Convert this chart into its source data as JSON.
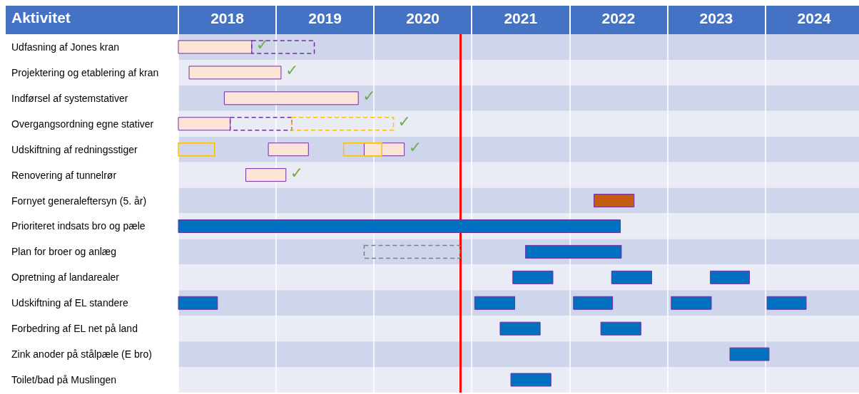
{
  "chart_data": {
    "type": "bar",
    "orientation": "horizontal",
    "ylabel": "Aktivitet",
    "categories": [
      "Udfasning af Jones kran",
      "Projektering og etablering af kran",
      "Indførsel af systemstativer",
      "Overgangsordning egne stativer",
      "Udskiftning af redningsstiger",
      "Renovering af tunnelrør",
      "Fornyet generaleftersyn (5. år)",
      "Prioriteret indsats bro og pæle",
      "Plan for broer og anlæg",
      "Opretning af landarealer",
      "Udskiftning af EL standere",
      "Forbedring af EL net på land",
      "Zink anoder på stålpæle (E bro)",
      "Toilet/bad på Muslingen"
    ],
    "series": [
      {
        "color": "#fbe5d6",
        "base": [
          2018.0,
          2018.11,
          2018.47,
          2018.0,
          2018.92,
          2018.69,
          null,
          null,
          null,
          null,
          null,
          null,
          null,
          null
        ],
        "values": [
          0.75,
          0.94,
          1.37,
          0.53,
          0.41,
          0.41,
          null,
          null,
          null,
          null,
          null,
          null,
          null,
          null
        ]
      },
      {
        "color": "#7030a0",
        "line_style": "dashed",
        "base": [
          2018.75,
          null,
          null,
          2018.53,
          null,
          null,
          null,
          null,
          null,
          null,
          null,
          null,
          null,
          null
        ],
        "values": [
          0.64,
          null,
          null,
          0.63,
          null,
          null,
          null,
          null,
          null,
          null,
          null,
          null,
          null,
          null
        ]
      },
      {
        "color": "#ffc000",
        "line_style": "dashed",
        "base": [
          null,
          null,
          null,
          2019.16,
          null,
          null,
          null,
          null,
          null,
          null,
          null,
          null,
          null,
          null
        ],
        "values": [
          null,
          null,
          null,
          1.04,
          null,
          null,
          null,
          null,
          null,
          null,
          null,
          null,
          null,
          null
        ]
      },
      {
        "color": "#ffc000",
        "line_style": "solid",
        "base": [
          null,
          null,
          null,
          null,
          2018.0,
          null,
          null,
          null,
          null,
          null,
          null,
          null,
          null,
          null
        ],
        "values": [
          null,
          null,
          null,
          null,
          0.37,
          null,
          null,
          null,
          null,
          null,
          null,
          null,
          null,
          null
        ]
      },
      {
        "color": "#fbe5d6",
        "base": [
          null,
          null,
          null,
          null,
          2019.9,
          null,
          null,
          null,
          null,
          null,
          null,
          null,
          null,
          null
        ],
        "values": [
          null,
          null,
          null,
          null,
          0.41,
          null,
          null,
          null,
          null,
          null,
          null,
          null,
          null,
          null
        ]
      },
      {
        "color": "#ffc000",
        "line_style": "solid",
        "base": [
          null,
          null,
          null,
          null,
          2019.69,
          null,
          null,
          null,
          null,
          null,
          null,
          null,
          null,
          null
        ],
        "values": [
          null,
          null,
          null,
          null,
          0.39,
          null,
          null,
          null,
          null,
          null,
          null,
          null,
          null,
          null
        ]
      },
      {
        "color": "#c55a11",
        "base": [
          null,
          null,
          null,
          null,
          null,
          null,
          2022.25,
          null,
          null,
          null,
          null,
          null,
          null,
          null
        ],
        "values": [
          null,
          null,
          null,
          null,
          null,
          null,
          0.41,
          null,
          null,
          null,
          null,
          null,
          null,
          null
        ]
      },
      {
        "color": "#808080",
        "line_style": "dashed",
        "base": [
          null,
          null,
          null,
          null,
          null,
          null,
          null,
          null,
          2019.9,
          null,
          null,
          null,
          null,
          null
        ],
        "values": [
          null,
          null,
          null,
          null,
          null,
          null,
          null,
          null,
          0.98,
          null,
          null,
          null,
          null,
          null
        ]
      },
      {
        "color": "#0070c0",
        "base": [
          null,
          null,
          null,
          null,
          null,
          null,
          null,
          2018.0,
          2021.55,
          2021.42,
          2018.0,
          2021.29,
          2023.64,
          2021.4
        ],
        "values": [
          null,
          null,
          null,
          null,
          null,
          null,
          null,
          4.52,
          0.98,
          0.41,
          0.4,
          0.41,
          0.4,
          0.41
        ]
      },
      {
        "color": "#0070c0",
        "base": [
          null,
          null,
          null,
          null,
          null,
          null,
          null,
          null,
          null,
          2022.43,
          2021.03,
          2022.32,
          null,
          null
        ],
        "values": [
          null,
          null,
          null,
          null,
          null,
          null,
          null,
          null,
          null,
          0.41,
          0.41,
          0.41,
          null,
          null
        ]
      },
      {
        "color": "#0070c0",
        "base": [
          null,
          null,
          null,
          null,
          null,
          null,
          null,
          null,
          null,
          2023.44,
          2022.04,
          null,
          null,
          null
        ],
        "values": [
          null,
          null,
          null,
          null,
          null,
          null,
          null,
          null,
          null,
          0.4,
          0.4,
          null,
          null,
          null
        ]
      },
      {
        "color": "#0070c0",
        "base": [
          null,
          null,
          null,
          null,
          null,
          null,
          null,
          null,
          null,
          null,
          2023.04,
          null,
          null,
          null
        ],
        "values": [
          null,
          null,
          null,
          null,
          null,
          null,
          null,
          null,
          null,
          null,
          0.41,
          null,
          null,
          null
        ]
      },
      {
        "color": "#0070c0",
        "base": [
          null,
          null,
          null,
          null,
          null,
          null,
          null,
          null,
          null,
          null,
          2024.02,
          null,
          null,
          null
        ],
        "values": [
          null,
          null,
          null,
          null,
          null,
          null,
          null,
          null,
          null,
          null,
          0.4,
          null,
          null,
          null
        ]
      }
    ],
    "xlim": [
      2018,
      2024.96
    ],
    "xticks": [
      {
        "value": 2018,
        "label": null
      },
      {
        "value": 2018.5,
        "label": "2018"
      },
      {
        "value": 2019,
        "label": null
      },
      {
        "value": 2019.5,
        "label": "2019"
      },
      {
        "value": 2020,
        "label": null
      },
      {
        "value": 2020.5,
        "label": "2020"
      },
      {
        "value": 2021,
        "label": null
      },
      {
        "value": 2021.5,
        "label": "2021"
      },
      {
        "value": 2022,
        "label": null
      },
      {
        "value": 2022.5,
        "label": "2022"
      },
      {
        "value": 2023,
        "label": null
      },
      {
        "value": 2023.5,
        "label": "2023"
      },
      {
        "value": 2024,
        "label": null
      },
      {
        "value": 2024.5,
        "label": "2024"
      }
    ],
    "ref_lines": [
      {
        "axis": "x",
        "value": 2020.88,
        "color": "#ff0000"
      }
    ],
    "annotations": [
      {
        "text": "✓",
        "x": 2018.75,
        "y": "Udfasning af Jones kran"
      },
      {
        "text": "✓",
        "x": 2019.05,
        "y": "Projektering og etablering af kran"
      },
      {
        "text": "✓",
        "x": 2019.84,
        "y": "Indførsel af systemstativer"
      },
      {
        "text": "✓",
        "x": 2020.2,
        "y": "Overgangsordning egne stativer"
      },
      {
        "text": "✓",
        "x": 2020.31,
        "y": "Udskiftning af redningsstiger"
      },
      {
        "text": "✓",
        "x": 2019.1,
        "y": "Renovering af tunnelrør"
      }
    ],
    "grid": "x"
  }
}
